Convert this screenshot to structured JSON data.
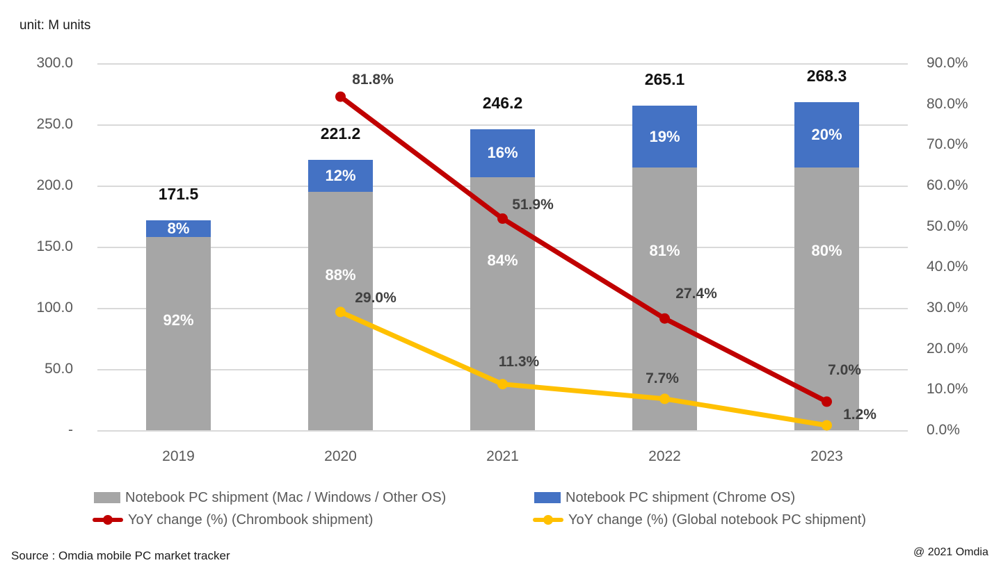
{
  "header": {
    "unit_label": "unit: M units"
  },
  "footer": {
    "source": "Source : Omdia mobile PC market tracker",
    "copyright": "@ 2021 Omdia"
  },
  "colors": {
    "gray_bar": "#a6a6a6",
    "blue_bar": "#4472c4",
    "red_line": "#c00000",
    "yellow_line": "#ffc000",
    "gridline": "#d9d9d9",
    "axis_text": "#595959",
    "line_label_text": "#404040",
    "inside_bar_text": "#ffffff",
    "total_text": "#111111"
  },
  "chart_data": {
    "type": "bar",
    "subtype": "stacked-bars-with-lines-combo",
    "title": "",
    "unit_note": "unit: M units",
    "categories": [
      "2019",
      "2020",
      "2021",
      "2022",
      "2023"
    ],
    "totals": {
      "values": [
        171.5,
        221.2,
        246.2,
        265.1,
        268.3
      ],
      "labels": [
        "171.5",
        "221.2",
        "246.2",
        "265.1",
        "268.3"
      ]
    },
    "bar_series": [
      {
        "name": "Notebook PC shipment (Mac / Windows / Other OS)",
        "color": "#a6a6a6",
        "stack_order": "bottom",
        "share_pct": [
          92,
          88,
          84,
          81,
          80
        ],
        "share_labels": [
          "92%",
          "88%",
          "84%",
          "81%",
          "80%"
        ]
      },
      {
        "name": "Notebook PC shipment (Chrome OS)",
        "color": "#4472c4",
        "stack_order": "top",
        "share_pct": [
          8,
          12,
          16,
          19,
          20
        ],
        "share_labels": [
          "8%",
          "12%",
          "16%",
          "19%",
          "20%"
        ]
      }
    ],
    "line_series": [
      {
        "name": "YoY change (%) (Chrombook shipment)",
        "color": "#c00000",
        "axis": "right",
        "values": [
          null,
          81.8,
          51.9,
          27.4,
          7.0
        ],
        "labels": [
          "",
          "81.8%",
          "51.9%",
          "27.4%",
          "7.0%"
        ]
      },
      {
        "name": "YoY change (%) (Global notebook PC shipment)",
        "color": "#ffc000",
        "axis": "right",
        "values": [
          null,
          29.0,
          11.3,
          7.7,
          1.2
        ],
        "labels": [
          "",
          "29.0%",
          "11.3%",
          "7.7%",
          "1.2%"
        ]
      }
    ],
    "left_axis": {
      "tick_labels": [
        "300.0",
        "250.0",
        "200.0",
        "150.0",
        "100.0",
        "50.0",
        "-"
      ],
      "tick_values": [
        300,
        250,
        200,
        150,
        100,
        50,
        0
      ],
      "min": 0,
      "max": 300
    },
    "right_axis": {
      "tick_labels": [
        "90.0%",
        "80.0%",
        "70.0%",
        "60.0%",
        "50.0%",
        "40.0%",
        "30.0%",
        "20.0%",
        "10.0%",
        "0.0%"
      ],
      "tick_values": [
        90,
        80,
        70,
        60,
        50,
        40,
        30,
        20,
        10,
        0
      ],
      "min": 0,
      "max": 90
    },
    "grid": "horizontal",
    "legend_position": "bottom"
  }
}
